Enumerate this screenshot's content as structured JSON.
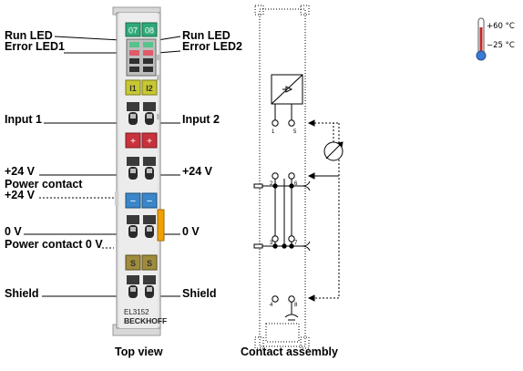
{
  "left_labels": {
    "run_led": "Run LED",
    "error_led1": "Error LED1",
    "input1": "Input 1",
    "plus24v": "+24 V",
    "power_contact": "Power contact",
    "power_contact_plus24": "+24 V",
    "zero_v": "0 V",
    "power_contact_0v": "Power contact 0 V",
    "shield": "Shield"
  },
  "right_labels": {
    "run_led": "Run LED",
    "error_led2": "Error LED2",
    "input2": "Input 2",
    "plus24v": "+24 V",
    "zero_v": "0 V",
    "shield": "Shield"
  },
  "terminal": {
    "led_numbers": [
      "07",
      "08"
    ],
    "channel_labels": [
      "I1",
      "I2"
    ],
    "plus_labels": [
      "+",
      "+"
    ],
    "minus_labels": [
      "−",
      "−"
    ],
    "shield_labels": [
      "S",
      "S"
    ],
    "contact_numbers": [
      "1",
      "5",
      "2",
      "6",
      "3",
      "7",
      "4",
      "8"
    ],
    "model": "EL3152",
    "brand": "BECKHOFF"
  },
  "contact_assembly": {
    "pin_numbers": [
      "1",
      "5",
      "2",
      "6",
      "3",
      "7",
      "4",
      "8"
    ]
  },
  "temperature": {
    "max": "+60 °C",
    "min": "−25 °C"
  },
  "captions": {
    "top_view": "Top view",
    "contact_assembly": "Contact assembly"
  },
  "colors": {
    "led_green": "#2eaa78",
    "channel_yellow": "#c8c832",
    "plus_red": "#c8323c",
    "minus_blue": "#3a86c8",
    "shield_olive": "#a08c3c",
    "power_contact_orange": "#f0a000"
  }
}
